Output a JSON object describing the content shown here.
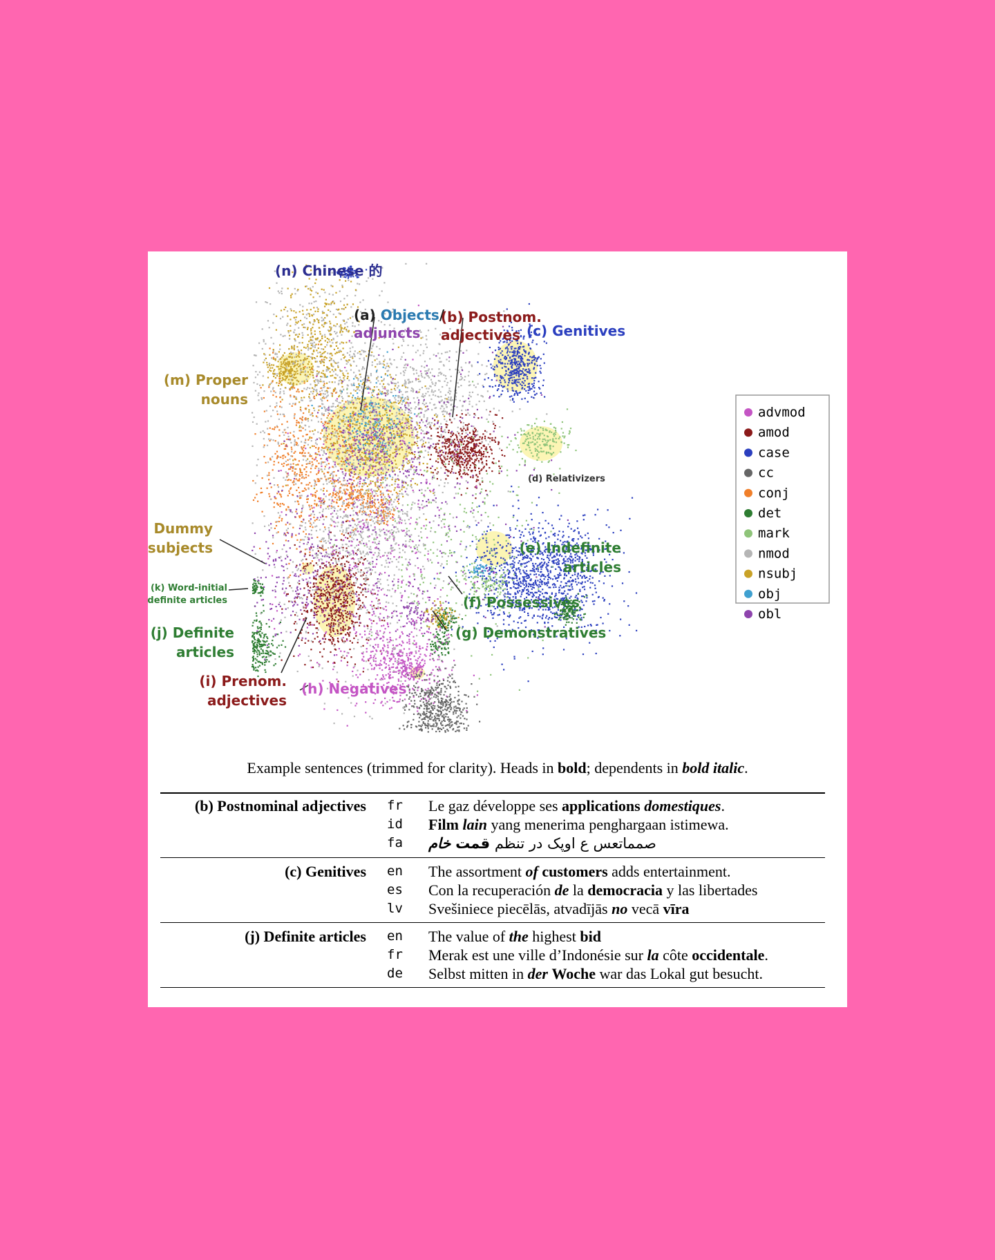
{
  "chart_data": {
    "type": "scatter",
    "title": "",
    "legend": {
      "placement": "right",
      "entries": [
        {
          "name": "advmod",
          "color": "#c455c4"
        },
        {
          "name": "amod",
          "color": "#8b1a1a"
        },
        {
          "name": "case",
          "color": "#2b3fbf"
        },
        {
          "name": "cc",
          "color": "#666666"
        },
        {
          "name": "conj",
          "color": "#f07f2a"
        },
        {
          "name": "det",
          "color": "#2e7d32"
        },
        {
          "name": "mark",
          "color": "#8fc47a"
        },
        {
          "name": "nmod",
          "color": "#b5b5b5"
        },
        {
          "name": "nsubj",
          "color": "#c9a227"
        },
        {
          "name": "obj",
          "color": "#3fa0d0"
        },
        {
          "name": "obl",
          "color": "#8e44ad"
        }
      ]
    },
    "annotations": [
      {
        "id": "n",
        "text": "(n) Chinese 的",
        "color": "#2b2d8f"
      },
      {
        "id": "a1",
        "prefix": "(a) ",
        "text": "Objects",
        "suffix": "/",
        "color": "#2a7ab0"
      },
      {
        "id": "a2",
        "text": "adjuncts",
        "color": "#8e44ad"
      },
      {
        "id": "b1",
        "text": "(b) Postnom.",
        "color": "#8b1a1a"
      },
      {
        "id": "b2",
        "text": "adjectives",
        "color": "#8b1a1a"
      },
      {
        "id": "c",
        "text": "(c) Genitives",
        "color": "#2b3fbf"
      },
      {
        "id": "m1",
        "text": "(m) Proper",
        "color": "#a88a2a"
      },
      {
        "id": "m2",
        "text": "nouns",
        "color": "#a88a2a"
      },
      {
        "id": "d",
        "text": "(d) Relativizers",
        "color": "#333333"
      },
      {
        "id": "l1",
        "text": "(l) Dummy",
        "color": "#a88a2a"
      },
      {
        "id": "l2",
        "text": "subjects",
        "color": "#a88a2a"
      },
      {
        "id": "e1",
        "text": "(e) Indefinite",
        "color": "#2e7d32"
      },
      {
        "id": "e2",
        "text": "articles",
        "color": "#2e7d32"
      },
      {
        "id": "k1",
        "text": "(k) Word-initial",
        "color": "#2e7d32"
      },
      {
        "id": "k2",
        "text": "definite articles",
        "color": "#2e7d32"
      },
      {
        "id": "f",
        "text": "(f) Possessives",
        "color": "#2e7d32"
      },
      {
        "id": "j1",
        "text": "(j) Definite",
        "color": "#2e7d32"
      },
      {
        "id": "j2",
        "text": "articles",
        "color": "#2e7d32"
      },
      {
        "id": "g",
        "text": "(g) Demonstratives",
        "color": "#2e7d32"
      },
      {
        "id": "i1",
        "text": "(i) Prenom.",
        "color": "#8b1a1a"
      },
      {
        "id": "i2",
        "text": "adjectives",
        "color": "#8b1a1a"
      },
      {
        "id": "h",
        "text": "(h) Negatives",
        "color": "#c455c4"
      }
    ]
  },
  "caption": {
    "part1": "Example sentences (trimmed for clarity). Heads in ",
    "bold": "bold",
    "part2": "; dependents in ",
    "bolditalic": "bold italic",
    "part3": "."
  },
  "examples": [
    {
      "category": "(b) Postnominal adjectives",
      "rows": [
        {
          "lang": "fr",
          "segments": [
            [
              "n",
              "Le gaz développe ses "
            ],
            [
              "b",
              "applications"
            ],
            [
              "n",
              " "
            ],
            [
              "bi",
              "domestiques"
            ],
            [
              "n",
              "."
            ]
          ]
        },
        {
          "lang": "id",
          "segments": [
            [
              "b",
              "Film"
            ],
            [
              "n",
              " "
            ],
            [
              "bi",
              "lain"
            ],
            [
              "n",
              " yang menerima penghargaan istimewa."
            ]
          ]
        },
        {
          "lang": "fa",
          "rtl": true,
          "segments": [
            [
              "n",
              "صمماتعس ع اوپک در تنظم "
            ],
            [
              "b",
              "قمت"
            ],
            [
              "n",
              " "
            ],
            [
              "bi",
              "خام"
            ]
          ]
        }
      ]
    },
    {
      "category": "(c) Genitives",
      "rows": [
        {
          "lang": "en",
          "segments": [
            [
              "n",
              "The assortment "
            ],
            [
              "bi",
              "of"
            ],
            [
              "n",
              " "
            ],
            [
              "b",
              "customers"
            ],
            [
              "n",
              " adds entertainment."
            ]
          ]
        },
        {
          "lang": "es",
          "segments": [
            [
              "n",
              "Con la recuperación "
            ],
            [
              "bi",
              "de"
            ],
            [
              "n",
              " la "
            ],
            [
              "b",
              "democracia"
            ],
            [
              "n",
              " y las libertades"
            ]
          ]
        },
        {
          "lang": "lv",
          "segments": [
            [
              "n",
              "Svešiniece piecēlās, atvadījās "
            ],
            [
              "bi",
              "no"
            ],
            [
              "n",
              " vecā "
            ],
            [
              "b",
              "vīra"
            ]
          ]
        }
      ]
    },
    {
      "category": "(j) Definite articles",
      "rows": [
        {
          "lang": "en",
          "segments": [
            [
              "n",
              "The value of "
            ],
            [
              "bi",
              "the"
            ],
            [
              "n",
              " highest "
            ],
            [
              "b",
              "bid"
            ]
          ]
        },
        {
          "lang": "fr",
          "segments": [
            [
              "n",
              "Merak est une ville d’Indonésie sur "
            ],
            [
              "bi",
              "la"
            ],
            [
              "n",
              " côte "
            ],
            [
              "b",
              "occidentale"
            ],
            [
              "n",
              "."
            ]
          ]
        },
        {
          "lang": "de",
          "segments": [
            [
              "n",
              "Selbst mitten in "
            ],
            [
              "bi",
              "der"
            ],
            [
              "n",
              " "
            ],
            [
              "b",
              "Woche"
            ],
            [
              "n",
              " war das Lokal gut besucht."
            ]
          ]
        }
      ]
    }
  ]
}
